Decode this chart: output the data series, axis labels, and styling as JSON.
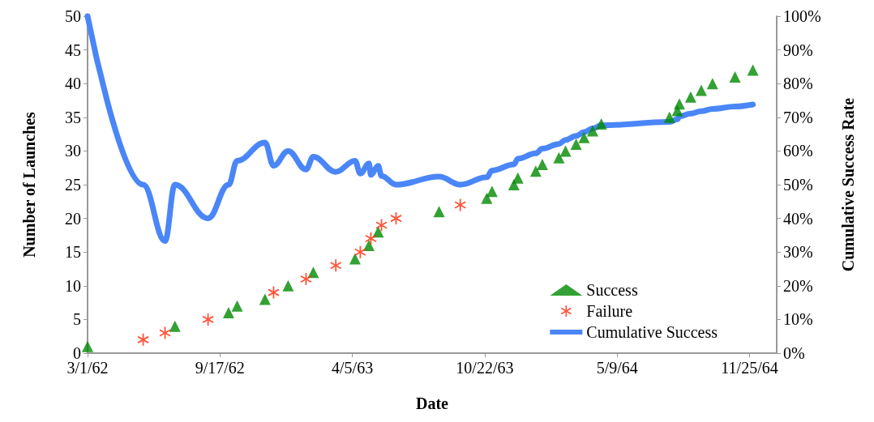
{
  "chart_data": {
    "type": "scatter",
    "xlabel": "Date",
    "ylabel": "Number of Launches",
    "y2label": "Cumulative Success Rate",
    "xlim": [
      "1962-03-01",
      "1965-01-05"
    ],
    "xticks": [
      {
        "value": "1962-03-01",
        "label": "3/1/62"
      },
      {
        "value": "1962-09-17",
        "label": "9/17/62"
      },
      {
        "value": "1963-04-05",
        "label": "4/5/63"
      },
      {
        "value": "1963-10-22",
        "label": "10/22/63"
      },
      {
        "value": "1964-05-09",
        "label": "5/9/64"
      },
      {
        "value": "1964-11-25",
        "label": "11/25/64"
      }
    ],
    "ylim": [
      0,
      50
    ],
    "yticks": [
      0,
      5,
      10,
      15,
      20,
      25,
      30,
      35,
      40,
      45,
      50
    ],
    "y2lim": [
      0,
      100
    ],
    "y2ticks": [
      {
        "value": 0,
        "label": "0%"
      },
      {
        "value": 10,
        "label": "10%"
      },
      {
        "value": 20,
        "label": "20%"
      },
      {
        "value": 30,
        "label": "30%"
      },
      {
        "value": 40,
        "label": "40%"
      },
      {
        "value": 50,
        "label": "50%"
      },
      {
        "value": 60,
        "label": "60%"
      },
      {
        "value": 70,
        "label": "70%"
      },
      {
        "value": 80,
        "label": "80%"
      },
      {
        "value": 90,
        "label": "90%"
      },
      {
        "value": 100,
        "label": "100%"
      }
    ],
    "grid": false,
    "legend": "bottom right",
    "series": [
      {
        "name": "Success",
        "marker": "triangle",
        "color": "#008a00",
        "x": [
          "1962-03-01",
          "1962-07-11",
          "1962-09-30",
          "1962-10-13",
          "1962-11-24",
          "1962-12-29",
          "1963-02-05",
          "1963-04-09",
          "1963-04-30",
          "1963-05-14",
          "1963-08-14",
          "1963-10-25",
          "1963-11-02",
          "1963-12-05",
          "1963-12-11",
          "1964-01-07",
          "1964-01-17",
          "1964-02-11",
          "1964-02-21",
          "1964-03-08",
          "1964-03-20",
          "1964-04-02",
          "1964-04-15",
          "1964-07-27",
          "1964-08-08",
          "1964-08-11",
          "1964-08-28",
          "1964-09-13",
          "1964-09-30",
          "1964-11-03",
          "1964-11-30"
        ],
        "values": [
          1,
          4,
          6,
          7,
          8,
          10,
          12,
          14,
          16,
          18,
          21,
          23,
          24,
          25,
          26,
          27,
          28,
          29,
          30,
          31,
          32,
          33,
          34,
          35,
          36,
          37,
          38,
          39,
          40,
          41,
          42
        ]
      },
      {
        "name": "Failure",
        "marker": "cross",
        "color": "#ff2a0a",
        "x": [
          "1962-05-24",
          "1962-06-26",
          "1962-08-30",
          "1962-12-07",
          "1963-01-25",
          "1963-03-11",
          "1963-04-17",
          "1963-05-03",
          "1963-05-19",
          "1963-06-10",
          "1963-09-15"
        ],
        "values": [
          2,
          3,
          5,
          9,
          11,
          13,
          15,
          17,
          19,
          20,
          22
        ]
      },
      {
        "name": "Cumulative Success",
        "type": "line",
        "axis": "y2",
        "marker": "none",
        "line_style": "solid",
        "color": "#4a86f7",
        "x": [
          "1962-03-01",
          "1962-05-24",
          "1962-06-26",
          "1962-07-11",
          "1962-08-30",
          "1962-09-30",
          "1962-10-13",
          "1962-11-24",
          "1962-12-07",
          "1962-12-29",
          "1963-01-25",
          "1963-02-05",
          "1963-03-11",
          "1963-04-09",
          "1963-04-17",
          "1963-04-30",
          "1963-05-03",
          "1963-05-14",
          "1963-05-19",
          "1963-06-10",
          "1963-08-14",
          "1963-09-15",
          "1963-10-25",
          "1963-11-02",
          "1963-12-05",
          "1963-12-11",
          "1964-01-07",
          "1964-01-17",
          "1964-02-11",
          "1964-02-21",
          "1964-03-08",
          "1964-03-20",
          "1964-04-02",
          "1964-04-15",
          "1964-07-27",
          "1964-08-08",
          "1964-08-11",
          "1964-08-28",
          "1964-09-13",
          "1964-09-30",
          "1964-11-03",
          "1964-11-30"
        ],
        "values": [
          100,
          50,
          33.3,
          50,
          40,
          50,
          57.1,
          62.5,
          55.6,
          60,
          54.5,
          58.3,
          53.8,
          57.1,
          53.3,
          56.3,
          52.9,
          55.6,
          52.6,
          50,
          52.4,
          50,
          52.2,
          54.2,
          56,
          57.7,
          59.3,
          60.7,
          62.1,
          63.3,
          64.5,
          65.6,
          66.7,
          67.6,
          68.6,
          69.4,
          70.3,
          71.1,
          71.8,
          72.5,
          73.2,
          73.8
        ]
      }
    ]
  }
}
